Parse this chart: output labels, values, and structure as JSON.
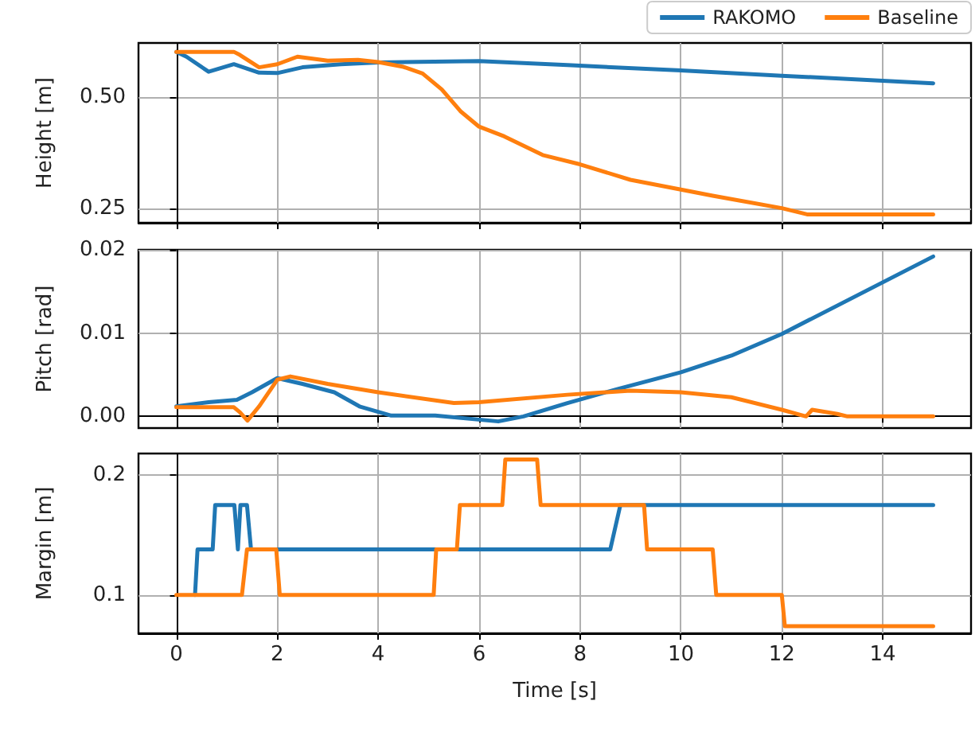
{
  "chart_data": [
    {
      "type": "line",
      "ylabel": "Height [m]",
      "legend": "top right",
      "grid": true,
      "tick_labels": "y",
      "marker": "none",
      "line_style": "solid",
      "xlim": [
        -0.75,
        15.75
      ],
      "xticks": [
        0,
        2,
        4,
        6,
        8,
        10,
        12,
        14
      ],
      "ylim": [
        0.217,
        0.623
      ],
      "yticks": [
        {
          "value": 0.25,
          "label": "0.25"
        },
        {
          "value": 0.5,
          "label": "0.50"
        }
      ],
      "series": [
        {
          "name": "RAKOMO",
          "color": "#1f77b4",
          "x": [
            0,
            0.2,
            0.64,
            1.14,
            1.64,
            2,
            2.5,
            3.26,
            4,
            6,
            7.75,
            10,
            12,
            15
          ],
          "values": [
            0.603,
            0.592,
            0.558,
            0.575,
            0.556,
            0.555,
            0.568,
            0.575,
            0.579,
            0.582,
            0.573,
            0.561,
            0.549,
            0.532
          ]
        },
        {
          "name": "Baseline",
          "color": "#ff7f0e",
          "x": [
            0,
            1.14,
            1.26,
            1.64,
            2,
            2.4,
            3,
            3.6,
            4,
            4.5,
            4.88,
            5.26,
            5.63,
            6,
            6.5,
            7.26,
            8,
            9,
            10,
            10.63,
            12,
            12.5,
            15
          ],
          "values": [
            0.603,
            0.603,
            0.596,
            0.568,
            0.575,
            0.592,
            0.583,
            0.585,
            0.58,
            0.569,
            0.554,
            0.518,
            0.469,
            0.434,
            0.412,
            0.37,
            0.349,
            0.314,
            0.292,
            0.278,
            0.25,
            0.236,
            0.236
          ]
        }
      ]
    },
    {
      "type": "line",
      "ylabel": "Pitch [rad]",
      "grid": true,
      "tick_labels": "y",
      "marker": "none",
      "line_style": "solid",
      "xlim": [
        -0.75,
        15.75
      ],
      "xticks": [
        0,
        2,
        4,
        6,
        8,
        10,
        12,
        14
      ],
      "ylim": [
        -0.0014,
        0.02
      ],
      "yticks": [
        {
          "value": 0,
          "label": "0.00"
        },
        {
          "value": 0.01,
          "label": "0.01"
        },
        {
          "value": 0.02,
          "label": "0.02"
        }
      ],
      "series": [
        {
          "color": "#1f77b4",
          "x": [
            0,
            0.64,
            1.2,
            1.5,
            2,
            2.5,
            3.13,
            3.63,
            4.26,
            5.13,
            6.38,
            6.88,
            7.75,
            8.75,
            10,
            11,
            12,
            15
          ],
          "values": [
            0.0012,
            0.0017,
            0.002,
            0.0029,
            0.0046,
            0.0039,
            0.0029,
            0.0012,
            0.0001,
            0.0001,
            -0.0006,
            0,
            0.0016,
            0.0033,
            0.0053,
            0.0073,
            0.0099,
            0.0192
          ]
        },
        {
          "color": "#ff7f0e",
          "x": [
            0,
            1.14,
            1.26,
            1.41,
            1.64,
            2,
            2.26,
            3,
            4,
            5.5,
            6,
            7.75,
            9,
            10,
            11,
            12,
            12.48,
            12.6,
            13.1,
            13.3,
            15
          ],
          "values": [
            0.0011,
            0.0011,
            0.0005,
            -0.0005,
            0.0012,
            0.0044,
            0.0048,
            0.0039,
            0.0029,
            0.0016,
            0.0017,
            0.0026,
            0.0031,
            0.0029,
            0.0023,
            0.0008,
            0,
            0.0008,
            0.0003,
            0,
            0
          ]
        }
      ]
    },
    {
      "type": "line",
      "xlabel": "Time [s]",
      "ylabel": "Margin [m]",
      "grid": true,
      "marker": "none",
      "line_style": "solid",
      "xlim": [
        -0.75,
        15.75
      ],
      "xticks": [
        0,
        2,
        4,
        6,
        8,
        10,
        12,
        14
      ],
      "ylim": [
        0.068,
        0.218
      ],
      "yticks": [
        0.1,
        0.2
      ],
      "series": [
        {
          "color": "#1f77b4",
          "x": [
            0.37,
            0.42,
            0.72,
            0.77,
            1.15,
            1.22,
            1.27,
            1.4,
            1.48,
            8.6,
            8.8,
            15
          ],
          "values": [
            0.1,
            0.138,
            0.138,
            0.175,
            0.175,
            0.138,
            0.175,
            0.175,
            0.138,
            0.138,
            0.175,
            0.175
          ]
        },
        {
          "color": "#ff7f0e",
          "x": [
            0,
            1.3,
            1.4,
            1.98,
            2.05,
            5.1,
            5.15,
            5.56,
            5.62,
            6.46,
            6.52,
            7.15,
            7.22,
            9.27,
            9.33,
            10.63,
            10.7,
            12,
            12.06,
            15
          ],
          "values": [
            0.1,
            0.1,
            0.138,
            0.138,
            0.1,
            0.1,
            0.138,
            0.138,
            0.175,
            0.175,
            0.213,
            0.213,
            0.175,
            0.175,
            0.138,
            0.138,
            0.1,
            0.1,
            0.074,
            0.074
          ]
        }
      ]
    }
  ]
}
